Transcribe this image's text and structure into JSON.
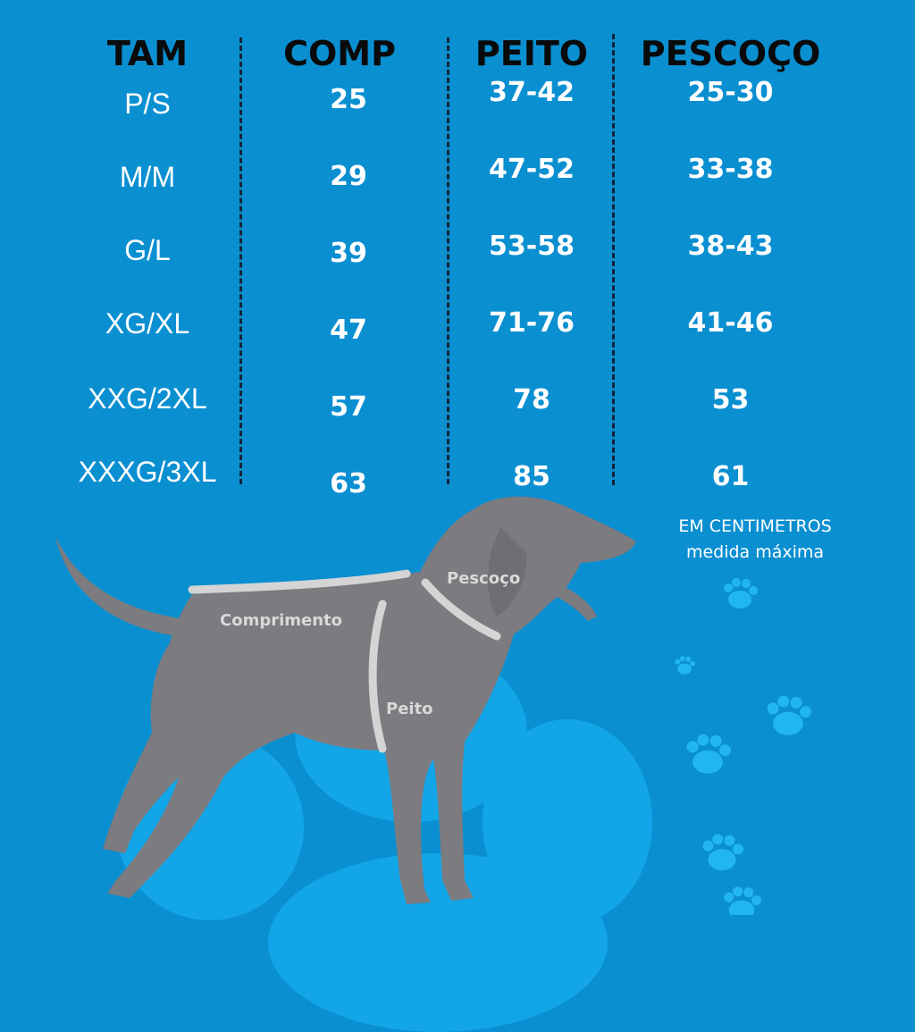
{
  "headers": {
    "size": "TAM",
    "length": "COMP",
    "chest": "PEITO",
    "neck": "PESCOÇO"
  },
  "rows": [
    {
      "size": "P/S",
      "length": "25",
      "chest": "37-42",
      "neck": "25-30"
    },
    {
      "size": "M/M",
      "length": "29",
      "chest": "47-52",
      "neck": "33-38"
    },
    {
      "size": "G/L",
      "length": "39",
      "chest": "53-58",
      "neck": "38-43"
    },
    {
      "size": "XG/XL",
      "length": "47",
      "chest": "71-76",
      "neck": "41-46"
    },
    {
      "size": "XXG/2XL",
      "length": "57",
      "chest": "78",
      "neck": "53"
    },
    {
      "size": "XXXG/3XL",
      "length": "63",
      "chest": "85",
      "neck": "61"
    }
  ],
  "note": {
    "line1": "EM CENTIMETROS",
    "line2": "medida máxima"
  },
  "dog_labels": {
    "neck": "Pescoço",
    "length": "Comprimento",
    "chest": "Peito"
  },
  "colors": {
    "background": "#0a8fd1",
    "header_text": "#0a0a0a",
    "dog": "#7b7b80",
    "strap": "#d4d4d4"
  },
  "icons": [
    "dog-silhouette-icon",
    "paw-print-icon"
  ]
}
